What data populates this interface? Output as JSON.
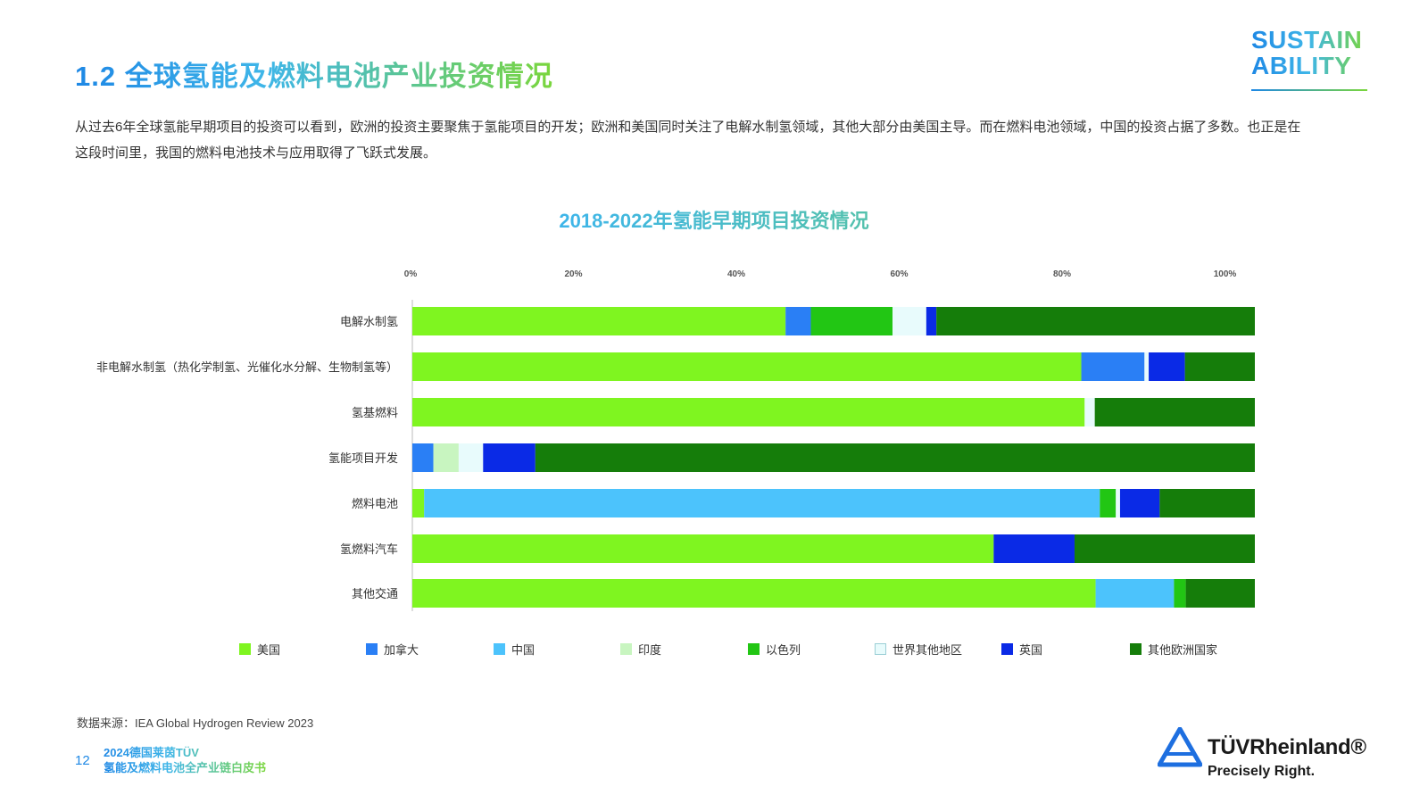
{
  "header": {
    "title": "1.2 全球氢能及燃料电池产业投资情况",
    "logo_line1": "SUSTAIN",
    "logo_line2": "ABILITY"
  },
  "intro": "从过去6年全球氢能早期项目的投资可以看到，欧洲的投资主要聚焦于氢能项目的开发；欧洲和美国同时关注了电解水制氢领域，其他大部分由美国主导。而在燃料电池领域，中国的投资占据了多数。也正是在这段时间里，我国的燃料电池技术与应用取得了飞跃式发展。",
  "chart_data": {
    "type": "bar",
    "orientation": "horizontal",
    "stacked": true,
    "title": "2018-2022年氢能早期项目投资情况",
    "x_ticks": [
      "0%",
      "20%",
      "40%",
      "60%",
      "80%",
      "100%"
    ],
    "xlim": [
      0,
      100
    ],
    "categories": [
      "电解水制氢",
      "非电解水制氢（热化学制氢、光催化水分解、生物制氢等）",
      "氢基燃料",
      "氢能项目开发",
      "燃料电池",
      "氢燃料汽车",
      "其他交通"
    ],
    "series": [
      {
        "name": "美国",
        "color": "#7ff520",
        "values": [
          44.3,
          79.4,
          79.8,
          0,
          1.4,
          69.0,
          81.1
        ]
      },
      {
        "name": "加拿大",
        "color": "#2a7ff5",
        "values": [
          3.0,
          7.5,
          0,
          2.5,
          0,
          0,
          0
        ]
      },
      {
        "name": "中国",
        "color": "#4cc3fc",
        "values": [
          0,
          0,
          0,
          0,
          80.2,
          0,
          9.3
        ]
      },
      {
        "name": "印度",
        "color": "#c8f5c0",
        "values": [
          0,
          0,
          0,
          3.0,
          0,
          0,
          0
        ]
      },
      {
        "name": "以色列",
        "color": "#22c614",
        "values": [
          9.7,
          0,
          0,
          0,
          1.9,
          0,
          1.4
        ]
      },
      {
        "name": "世界其他地区",
        "color": "#e8fbfc",
        "values": [
          4.0,
          0.5,
          1.2,
          2.9,
          0.5,
          0,
          0
        ]
      },
      {
        "name": "英国",
        "color": "#0a2ae6",
        "values": [
          1.2,
          4.3,
          0,
          6.2,
          4.7,
          9.6,
          0
        ]
      },
      {
        "name": "其他欧洲国家",
        "color": "#157d0a",
        "values": [
          37.8,
          8.3,
          19.0,
          85.4,
          11.3,
          21.4,
          8.2
        ]
      }
    ],
    "legend_position": "bottom",
    "grid": false
  },
  "source": "数据来源：IEA Global Hydrogen Review 2023",
  "footer": {
    "page_number": "12",
    "title_line1": "2024德国莱茵TÜV",
    "title_line2": "氢能及燃料电池全产业链白皮书",
    "brand_name": "TÜVRheinland®",
    "brand_tagline": "Precisely Right."
  }
}
